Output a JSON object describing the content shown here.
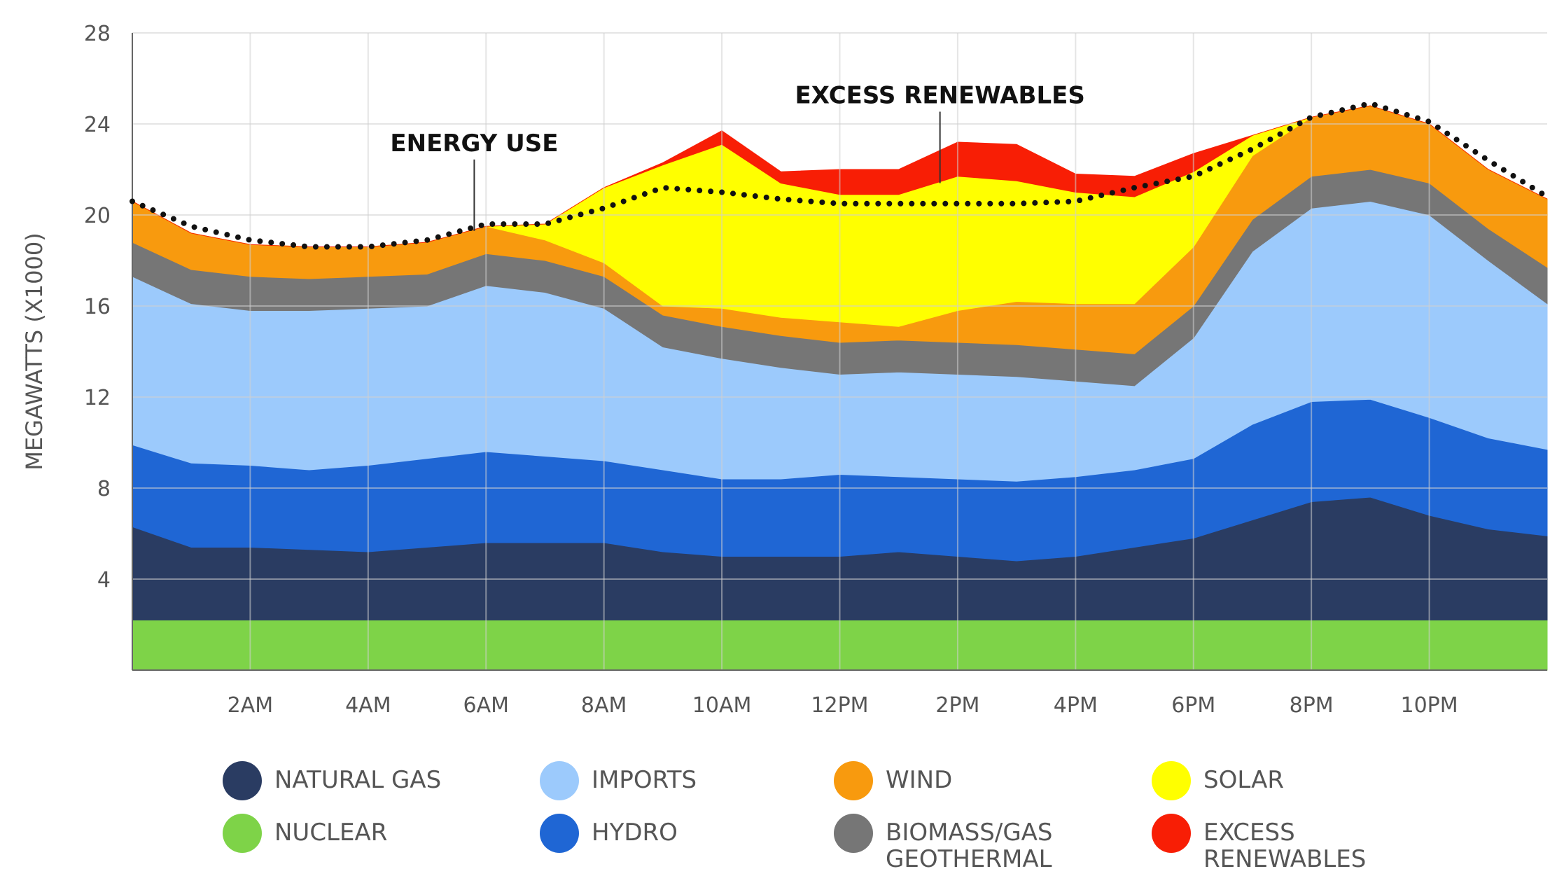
{
  "chart_data": {
    "type": "area",
    "stacked": true,
    "title": "",
    "xlabel": "",
    "ylabel": "MEGAWATTS (X1000)",
    "ylim": [
      0,
      28
    ],
    "y_ticks": [
      4,
      8,
      12,
      16,
      20,
      24,
      28
    ],
    "xlim": [
      0,
      24
    ],
    "x_ticks": [
      2,
      4,
      6,
      8,
      10,
      12,
      14,
      16,
      18,
      20,
      22
    ],
    "x_tick_labels": [
      "2AM",
      "4AM",
      "6AM",
      "8AM",
      "10AM",
      "12PM",
      "2PM",
      "4PM",
      "6PM",
      "8PM",
      "10PM"
    ],
    "grid": true,
    "x": [
      0,
      1,
      2,
      3,
      4,
      5,
      6,
      7,
      8,
      9,
      10,
      11,
      12,
      13,
      14,
      15,
      16,
      17,
      18,
      19,
      20,
      21,
      22,
      23,
      24
    ],
    "series": [
      {
        "name": "NUCLEAR",
        "color": "#7ED348",
        "values": [
          2.2,
          2.2,
          2.2,
          2.2,
          2.2,
          2.2,
          2.2,
          2.2,
          2.2,
          2.2,
          2.2,
          2.2,
          2.2,
          2.2,
          2.2,
          2.2,
          2.2,
          2.2,
          2.2,
          2.2,
          2.2,
          2.2,
          2.2,
          2.2,
          2.2
        ]
      },
      {
        "name": "NATURAL GAS",
        "color": "#2A3C62",
        "values": [
          4.1,
          3.2,
          3.2,
          3.1,
          3.0,
          3.2,
          3.4,
          3.4,
          3.4,
          3.0,
          2.8,
          2.8,
          2.8,
          3.0,
          2.8,
          2.6,
          2.8,
          3.2,
          3.6,
          4.4,
          5.2,
          5.4,
          4.6,
          4.0,
          3.7
        ]
      },
      {
        "name": "HYDRO",
        "color": "#1F66D4",
        "values": [
          3.6,
          3.7,
          3.6,
          3.5,
          3.8,
          3.9,
          4.0,
          3.8,
          3.6,
          3.6,
          3.4,
          3.4,
          3.6,
          3.3,
          3.4,
          3.5,
          3.5,
          3.4,
          3.5,
          4.2,
          4.4,
          4.3,
          4.3,
          4.0,
          3.8
        ]
      },
      {
        "name": "IMPORTS",
        "color": "#9CCAFC",
        "values": [
          7.4,
          7.0,
          6.8,
          7.0,
          6.9,
          6.7,
          7.3,
          7.2,
          6.7,
          5.4,
          5.3,
          4.9,
          4.4,
          4.6,
          4.6,
          4.6,
          4.2,
          3.7,
          5.3,
          7.6,
          8.5,
          8.7,
          8.9,
          7.8,
          6.4
        ]
      },
      {
        "name": "BIOMASS/GAS GEOTHERMAL",
        "color": "#767676",
        "values": [
          1.5,
          1.5,
          1.5,
          1.4,
          1.4,
          1.4,
          1.4,
          1.4,
          1.4,
          1.4,
          1.4,
          1.4,
          1.4,
          1.4,
          1.4,
          1.4,
          1.4,
          1.4,
          1.4,
          1.4,
          1.4,
          1.4,
          1.4,
          1.4,
          1.6
        ]
      },
      {
        "name": "WIND",
        "color": "#F89A0E",
        "values": [
          1.8,
          1.6,
          1.4,
          1.4,
          1.3,
          1.4,
          1.2,
          0.9,
          0.6,
          0.4,
          0.8,
          0.8,
          0.9,
          0.6,
          1.4,
          1.9,
          2.0,
          2.2,
          2.6,
          2.8,
          2.6,
          2.8,
          2.6,
          2.6,
          3.0
        ]
      },
      {
        "name": "SOLAR",
        "color": "#FFFF00",
        "values": [
          0,
          0,
          0,
          0,
          0,
          0,
          0,
          0.7,
          3.3,
          6.2,
          7.2,
          5.9,
          5.6,
          5.8,
          5.9,
          5.3,
          4.9,
          4.7,
          3.3,
          0.9,
          0,
          0,
          0,
          0,
          0
        ]
      },
      {
        "name": "EXCESS RENEWABLES",
        "color": "#F81E05",
        "values": [
          0,
          0,
          0,
          0,
          0,
          0,
          0,
          0,
          0,
          0.1,
          0.6,
          0.5,
          1.1,
          1.1,
          1.5,
          1.6,
          0.8,
          0.9,
          0.8,
          0,
          0,
          0,
          0,
          0,
          0
        ]
      }
    ],
    "energy_use": {
      "name": "ENERGY USE",
      "values": [
        20.6,
        19.5,
        18.9,
        18.6,
        18.6,
        18.9,
        19.6,
        19.6,
        20.3,
        21.2,
        21.0,
        20.7,
        20.5,
        20.5,
        20.5,
        20.5,
        20.6,
        21.2,
        21.7,
        22.9,
        24.3,
        24.9,
        24.1,
        22.4,
        20.8
      ]
    },
    "annotations": [
      {
        "text": "ENERGY USE",
        "x": 5.8,
        "y": 19.3
      },
      {
        "text": "EXCESS RENEWABLES",
        "x": 13.7,
        "y": 21.4
      }
    ],
    "legend": [
      {
        "label": "NATURAL GAS",
        "color": "#2A3C62"
      },
      {
        "label": "IMPORTS",
        "color": "#9CCAFC"
      },
      {
        "label": "WIND",
        "color": "#F89A0E"
      },
      {
        "label": "SOLAR",
        "color": "#FFFF00"
      },
      {
        "label": "NUCLEAR",
        "color": "#7ED348"
      },
      {
        "label": "HYDRO",
        "color": "#1F66D4"
      },
      {
        "label": "BIOMASS/GAS GEOTHERMAL",
        "color": "#767676"
      },
      {
        "label": "EXCESS RENEWABLES",
        "color": "#F81E05"
      }
    ],
    "legend_position": "bottom"
  }
}
